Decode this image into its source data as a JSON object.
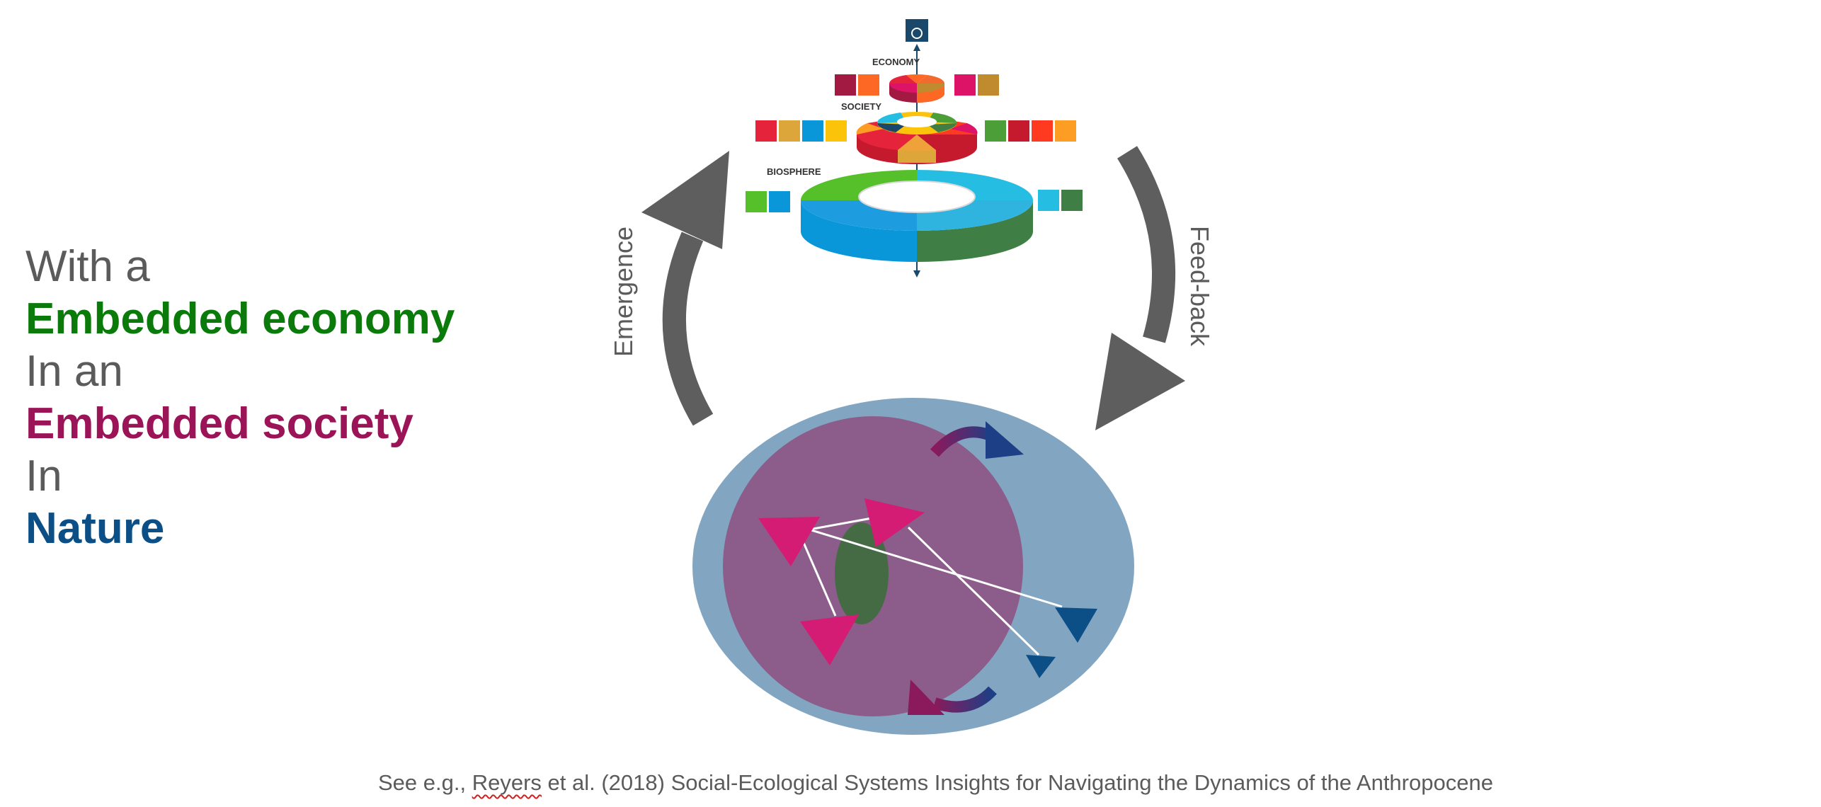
{
  "statement": {
    "line1": "With a",
    "line2": "Embedded economy",
    "line3": "In an",
    "line4": "Embedded society",
    "line5": "In",
    "line6": "Nature"
  },
  "wedding_cake": {
    "economy_label": "ECONOMY",
    "society_label": "SOCIETY",
    "biosphere_label": "BIOSPHERE",
    "layers": {
      "economy": [
        "#e5243b",
        "#fd6925",
        "#dd1367",
        "#bf8b2e",
        "#a21942"
      ],
      "society": [
        "#e5243b",
        "#dda63a",
        "#4c9f38",
        "#c5192d",
        "#ff3a21",
        "#26bde2",
        "#fcc30b",
        "#19486a",
        "#fd9d24"
      ],
      "biosphere": [
        "#56c02b",
        "#26bde2",
        "#0a97d9",
        "#3f7e44"
      ]
    },
    "goal_icon_colors": {
      "economy_left": [
        "#a21942",
        "#fd6925"
      ],
      "economy_right": [
        "#dd1367",
        "#bf8b2e"
      ],
      "society_left": [
        "#e5243b",
        "#dda63a",
        "#0a97d9",
        "#fcc30b"
      ],
      "society_right": [
        "#4c9f38",
        "#c5192d",
        "#ff3a21",
        "#fd9d24"
      ],
      "biosphere_left": [
        "#56c02b",
        "#0a97d9"
      ],
      "biosphere_right": [
        "#26bde2",
        "#3f7e44"
      ],
      "top": "#19486a"
    }
  },
  "cycle": {
    "left_label": "Emergence",
    "right_label": "Feed-back"
  },
  "citation": {
    "prefix": "See e.g., ",
    "author": "Reyers",
    "suffix": " et al. (2018)  Social-Ecological Systems Insights for Navigating the Dynamics of the Anthropocene"
  }
}
